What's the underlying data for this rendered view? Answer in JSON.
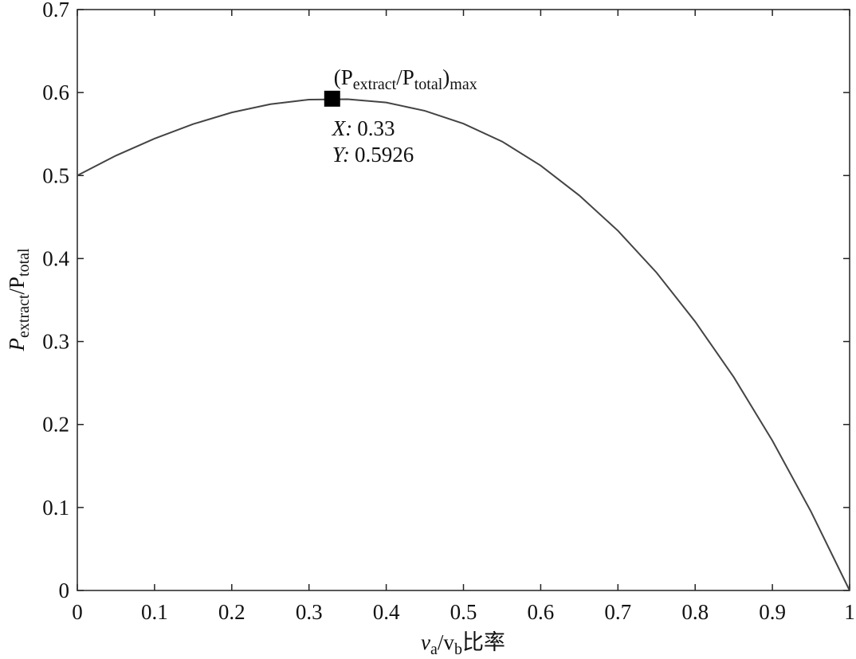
{
  "chart_data": {
    "type": "line",
    "ylabel": [
      "P",
      "extract",
      "/P",
      "total"
    ],
    "xlabel": [
      "v",
      "a",
      "/v",
      "b",
      "比率"
    ],
    "x": [
      0,
      0.05,
      0.1,
      0.15,
      0.2,
      0.25,
      0.3,
      0.35,
      0.4,
      0.45,
      0.5,
      0.55,
      0.6,
      0.65,
      0.7,
      0.75,
      0.8,
      0.85,
      0.9,
      0.95,
      1
    ],
    "y": [
      0.5,
      0.524,
      0.5445,
      0.562,
      0.576,
      0.586,
      0.5915,
      0.592,
      0.588,
      0.578,
      0.5625,
      0.541,
      0.512,
      0.476,
      0.4335,
      0.383,
      0.324,
      0.257,
      0.1805,
      0.095,
      0
    ],
    "color": "#444444",
    "xlim": [
      0,
      1
    ],
    "ylim": [
      0,
      0.7
    ],
    "xticks": [
      0,
      0.1,
      0.2,
      0.3,
      0.4,
      0.5,
      0.6,
      0.7,
      0.8,
      0.9,
      1
    ],
    "yticks": [
      0,
      0.1,
      0.2,
      0.3,
      0.4,
      0.5,
      0.6,
      0.7
    ],
    "annotation": {
      "label": [
        "(P",
        "extract",
        "/P",
        "total",
        ")",
        "max"
      ],
      "x_label": "X:",
      "x": 0.33,
      "y_label": "Y:",
      "y": 0.5926
    }
  }
}
